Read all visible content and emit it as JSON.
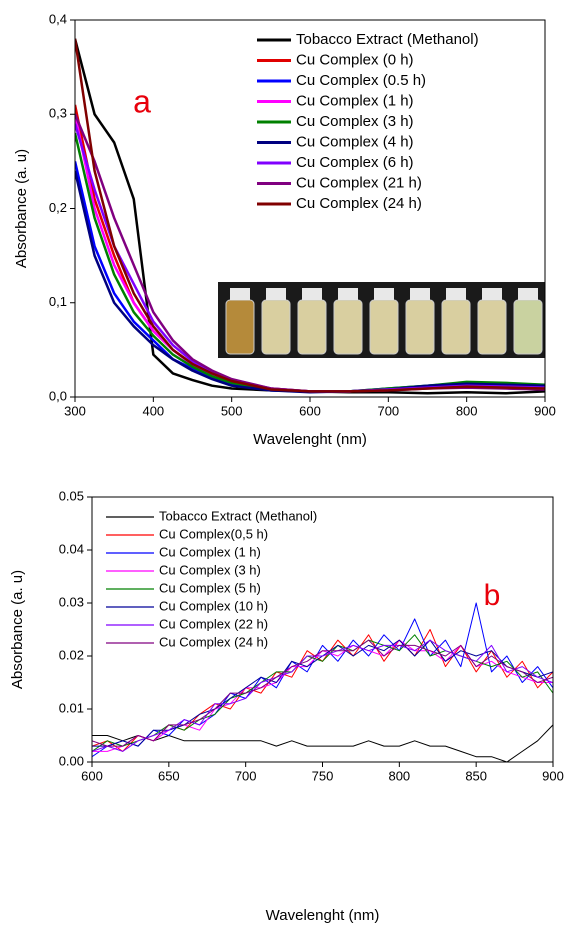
{
  "chart_data": [
    {
      "type": "line",
      "annotation": "a",
      "xlabel": "Wavelenght (nm)",
      "ylabel": "Absorbance (a. u)",
      "x": [
        300,
        325,
        350,
        375,
        400,
        425,
        450,
        475,
        500,
        550,
        600,
        650,
        700,
        750,
        800,
        850,
        900
      ],
      "xlim": [
        300,
        900
      ],
      "xticks": [
        300,
        400,
        500,
        600,
        700,
        800,
        900
      ],
      "ylim": [
        0,
        0.4
      ],
      "yticks": [
        {
          "value": 0,
          "label": "0,0"
        },
        {
          "value": 0.1,
          "label": "0,1"
        },
        {
          "value": 0.2,
          "label": "0,2"
        },
        {
          "value": 0.3,
          "label": "0,3"
        },
        {
          "value": 0.4,
          "label": "0,4"
        }
      ],
      "legend": "upper right",
      "series": [
        {
          "name": "Tobacco Extract (Methanol)",
          "color": "#000000",
          "values": [
            0.38,
            0.3,
            0.27,
            0.21,
            0.045,
            0.025,
            0.018,
            0.012,
            0.009,
            0.007,
            0.006,
            0.005,
            0.005,
            0.004,
            0.005,
            0.004,
            0.006
          ]
        },
        {
          "name": "Cu Complex (0 h)",
          "color": "#e00000",
          "values": [
            0.31,
            0.21,
            0.15,
            0.1,
            0.07,
            0.05,
            0.035,
            0.025,
            0.017,
            0.009,
            0.006,
            0.006,
            0.008,
            0.011,
            0.013,
            0.012,
            0.011
          ]
        },
        {
          "name": "Cu Complex (0.5 h)",
          "color": "#0000ff",
          "values": [
            0.25,
            0.16,
            0.11,
            0.08,
            0.06,
            0.04,
            0.03,
            0.02,
            0.013,
            0.007,
            0.006,
            0.006,
            0.009,
            0.012,
            0.015,
            0.014,
            0.012
          ]
        },
        {
          "name": "Cu Complex (1 h)",
          "color": "#ff00ff",
          "values": [
            0.3,
            0.2,
            0.14,
            0.1,
            0.07,
            0.05,
            0.034,
            0.024,
            0.016,
            0.008,
            0.006,
            0.006,
            0.008,
            0.011,
            0.013,
            0.012,
            0.011
          ]
        },
        {
          "name": "Cu Complex (3 h)",
          "color": "#008000",
          "values": [
            0.28,
            0.19,
            0.13,
            0.09,
            0.065,
            0.045,
            0.032,
            0.022,
            0.015,
            0.008,
            0.006,
            0.006,
            0.009,
            0.012,
            0.016,
            0.015,
            0.013
          ]
        },
        {
          "name": "Cu Complex (4 h)",
          "color": "#000080",
          "values": [
            0.24,
            0.15,
            0.1,
            0.075,
            0.055,
            0.04,
            0.028,
            0.019,
            0.012,
            0.007,
            0.005,
            0.006,
            0.008,
            0.012,
            0.014,
            0.013,
            0.012
          ]
        },
        {
          "name": "Cu Complex (6 h)",
          "color": "#8000ff",
          "values": [
            0.29,
            0.22,
            0.16,
            0.12,
            0.08,
            0.055,
            0.038,
            0.026,
            0.018,
            0.009,
            0.006,
            0.006,
            0.008,
            0.01,
            0.012,
            0.011,
            0.01
          ]
        },
        {
          "name": "Cu Complex (21 h)",
          "color": "#800080",
          "values": [
            0.3,
            0.25,
            0.19,
            0.14,
            0.09,
            0.06,
            0.04,
            0.028,
            0.019,
            0.009,
            0.006,
            0.006,
            0.007,
            0.009,
            0.01,
            0.009,
            0.008
          ]
        },
        {
          "name": "Cu Complex (24 h)",
          "color": "#800000",
          "values": [
            0.38,
            0.24,
            0.16,
            0.11,
            0.075,
            0.05,
            0.035,
            0.025,
            0.017,
            0.008,
            0.006,
            0.006,
            0.007,
            0.009,
            0.011,
            0.01,
            0.009
          ]
        }
      ]
    },
    {
      "type": "line",
      "annotation": "b",
      "xlabel": "Wavelenght (nm)",
      "ylabel": "Absorbance (a. u)",
      "x": [
        600,
        610,
        620,
        630,
        640,
        650,
        660,
        670,
        680,
        690,
        700,
        710,
        720,
        730,
        740,
        750,
        760,
        770,
        780,
        790,
        800,
        810,
        820,
        830,
        840,
        850,
        860,
        870,
        880,
        890,
        900
      ],
      "xlim": [
        600,
        900
      ],
      "xticks": [
        600,
        650,
        700,
        750,
        800,
        850,
        900
      ],
      "ylim": [
        0,
        0.05
      ],
      "yticks": [
        {
          "value": 0,
          "label": "0.00"
        },
        0.01,
        0.02,
        0.03,
        0.04,
        0.05
      ],
      "legend": "upper left",
      "series": [
        {
          "name": "Tobacco Extract (Methanol)",
          "color": "#000000",
          "values": [
            0.005,
            0.005,
            0.004,
            0.005,
            0.004,
            0.005,
            0.004,
            0.004,
            0.004,
            0.004,
            0.004,
            0.004,
            0.003,
            0.004,
            0.003,
            0.003,
            0.003,
            0.003,
            0.004,
            0.003,
            0.003,
            0.004,
            0.003,
            0.003,
            0.002,
            0.001,
            0.001,
            0.0,
            0.002,
            0.004,
            0.007
          ]
        },
        {
          "name": "Cu Complex(0,5 h)",
          "color": "#ff0000",
          "values": [
            0.003,
            0.004,
            0.002,
            0.005,
            0.004,
            0.007,
            0.006,
            0.009,
            0.011,
            0.01,
            0.014,
            0.013,
            0.017,
            0.016,
            0.021,
            0.019,
            0.023,
            0.02,
            0.024,
            0.019,
            0.023,
            0.02,
            0.025,
            0.018,
            0.022,
            0.017,
            0.021,
            0.016,
            0.019,
            0.014,
            0.017
          ]
        },
        {
          "name": "Cu Complex (1 h)",
          "color": "#0000ff",
          "values": [
            0.001,
            0.003,
            0.004,
            0.003,
            0.006,
            0.005,
            0.008,
            0.007,
            0.009,
            0.013,
            0.012,
            0.016,
            0.014,
            0.019,
            0.017,
            0.022,
            0.019,
            0.023,
            0.02,
            0.024,
            0.021,
            0.027,
            0.02,
            0.023,
            0.018,
            0.03,
            0.017,
            0.02,
            0.015,
            0.018,
            0.014
          ]
        },
        {
          "name": "Cu Complex (3 h)",
          "color": "#ff00ff",
          "values": [
            0.002,
            0.002,
            0.003,
            0.005,
            0.004,
            0.006,
            0.007,
            0.006,
            0.01,
            0.011,
            0.014,
            0.014,
            0.015,
            0.018,
            0.018,
            0.021,
            0.02,
            0.022,
            0.021,
            0.02,
            0.023,
            0.021,
            0.021,
            0.019,
            0.022,
            0.018,
            0.019,
            0.017,
            0.016,
            0.015,
            0.015
          ]
        },
        {
          "name": "Cu Complex (5 h)",
          "color": "#008000",
          "values": [
            0.002,
            0.004,
            0.003,
            0.004,
            0.005,
            0.007,
            0.006,
            0.008,
            0.009,
            0.012,
            0.013,
            0.015,
            0.017,
            0.017,
            0.02,
            0.019,
            0.022,
            0.021,
            0.023,
            0.022,
            0.021,
            0.024,
            0.02,
            0.021,
            0.02,
            0.019,
            0.018,
            0.019,
            0.016,
            0.017,
            0.013
          ]
        },
        {
          "name": "Cu Complex (10 h)",
          "color": "#000099",
          "values": [
            0.003,
            0.003,
            0.004,
            0.003,
            0.006,
            0.006,
            0.007,
            0.009,
            0.01,
            0.012,
            0.014,
            0.016,
            0.015,
            0.019,
            0.018,
            0.02,
            0.022,
            0.02,
            0.022,
            0.021,
            0.023,
            0.02,
            0.023,
            0.019,
            0.021,
            0.02,
            0.021,
            0.018,
            0.017,
            0.016,
            0.017
          ]
        },
        {
          "name": "Cu Complex (22 h)",
          "color": "#8000ff",
          "values": [
            0.002,
            0.003,
            0.002,
            0.004,
            0.005,
            0.006,
            0.008,
            0.007,
            0.011,
            0.011,
            0.012,
            0.015,
            0.016,
            0.017,
            0.02,
            0.02,
            0.021,
            0.022,
            0.021,
            0.022,
            0.022,
            0.021,
            0.023,
            0.021,
            0.02,
            0.019,
            0.022,
            0.017,
            0.018,
            0.016,
            0.015
          ]
        },
        {
          "name": "Cu Complex (24 h)",
          "color": "#800080",
          "values": [
            0.004,
            0.003,
            0.003,
            0.005,
            0.004,
            0.007,
            0.007,
            0.008,
            0.01,
            0.013,
            0.013,
            0.014,
            0.016,
            0.018,
            0.019,
            0.021,
            0.021,
            0.021,
            0.023,
            0.02,
            0.022,
            0.022,
            0.021,
            0.02,
            0.022,
            0.018,
            0.02,
            0.018,
            0.017,
            0.015,
            0.016
          ]
        }
      ]
    }
  ]
}
